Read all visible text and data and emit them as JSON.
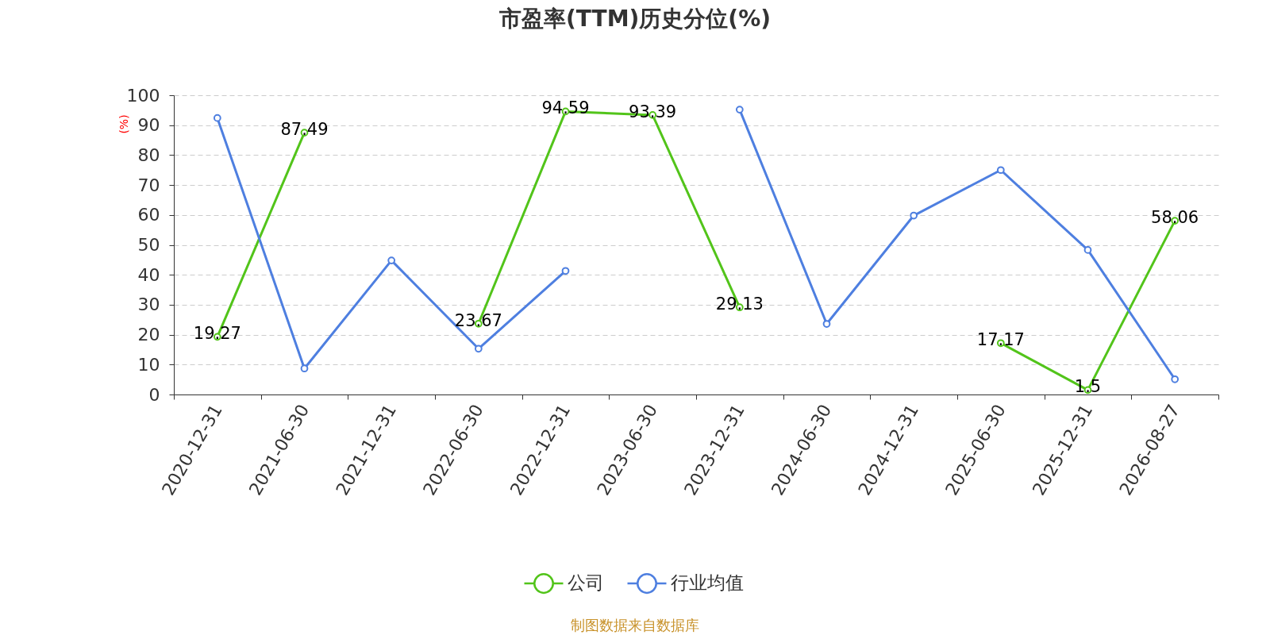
{
  "chart_data": {
    "type": "line",
    "title": "市盈率(TTM)历史分位(%)",
    "ylabel": "(%)",
    "categories": [
      "2020-12-31",
      "2021-06-30",
      "2021-12-31",
      "2022-06-30",
      "2022-12-31",
      "2023-06-30",
      "2023-12-31",
      "2024-06-30",
      "2024-12-31",
      "2025-06-30",
      "2025-12-31",
      "2026-08-27"
    ],
    "series": [
      {
        "name": "公司",
        "color": "#52c41a",
        "data_labels": true,
        "values": [
          19.27,
          87.49,
          null,
          23.67,
          94.59,
          93.39,
          29.13,
          null,
          null,
          17.17,
          1.5,
          58.06
        ]
      },
      {
        "name": "行业均值",
        "color": "#4e7fe0",
        "values": [
          92.4,
          8.7,
          44.8,
          15.3,
          41.3,
          null,
          95.2,
          23.6,
          59.8,
          75.0,
          48.3,
          5.1
        ]
      }
    ],
    "ylim": [
      0,
      100
    ],
    "yticks": [
      0,
      10,
      20,
      30,
      40,
      50,
      60,
      70,
      80,
      90,
      100
    ],
    "grid": "y",
    "legend": "bottom",
    "marker": "circle",
    "line_style": "solid",
    "annotations": [
      "制图数据来自数据库"
    ]
  }
}
